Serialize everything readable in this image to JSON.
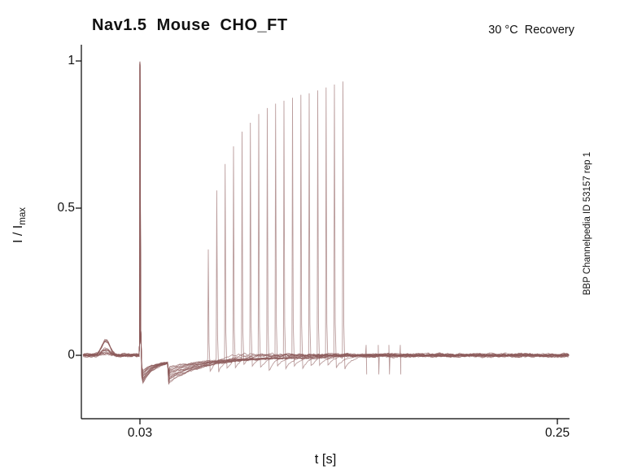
{
  "chart_data": {
    "type": "line",
    "title": "Nav1.5  Mouse  CHO_FT",
    "temperature_annotation": "30 °C  Recovery",
    "side_annotation": "BBP Channelpedia ID 53157 rep 1",
    "xlabel": "t [s]",
    "ylabel_main": "I / I",
    "ylabel_subscript": "max",
    "x_tick_labels": [
      "0.03",
      "0.25"
    ],
    "x_tick_values": [
      0.03,
      0.25
    ],
    "y_tick_labels": [
      "1",
      "0.5",
      "0"
    ],
    "y_tick_values": [
      1,
      0.5,
      0
    ],
    "xlim": [
      0,
      0.2564
    ],
    "ylim": [
      -0.215,
      1.055
    ],
    "grid": false,
    "legend": false,
    "line_color": "#8c5a5a",
    "axis_color": "#000000",
    "control_pulse": {
      "time": 0.03,
      "amplitude": 1.0
    },
    "second_step_time": 0.0452,
    "recovery_spikes": {
      "times": [
        0.066,
        0.0705,
        0.0749,
        0.0793,
        0.0838,
        0.0882,
        0.0926,
        0.0971,
        0.1015,
        0.1059,
        0.1104,
        0.1148,
        0.1192,
        0.1237,
        0.1281,
        0.1325,
        0.137
      ],
      "amplitudes": [
        0.36,
        0.56,
        0.65,
        0.71,
        0.76,
        0.79,
        0.82,
        0.84,
        0.855,
        0.865,
        0.875,
        0.885,
        0.89,
        0.9,
        0.91,
        0.92,
        0.93
      ]
    },
    "minor_transients": [
      0.1492,
      0.1556,
      0.1612,
      0.1672
    ],
    "baseline_noise_amplitude": 0.012,
    "pre_pulse_bump": {
      "time": 0.012,
      "amplitude": 0.05
    }
  }
}
